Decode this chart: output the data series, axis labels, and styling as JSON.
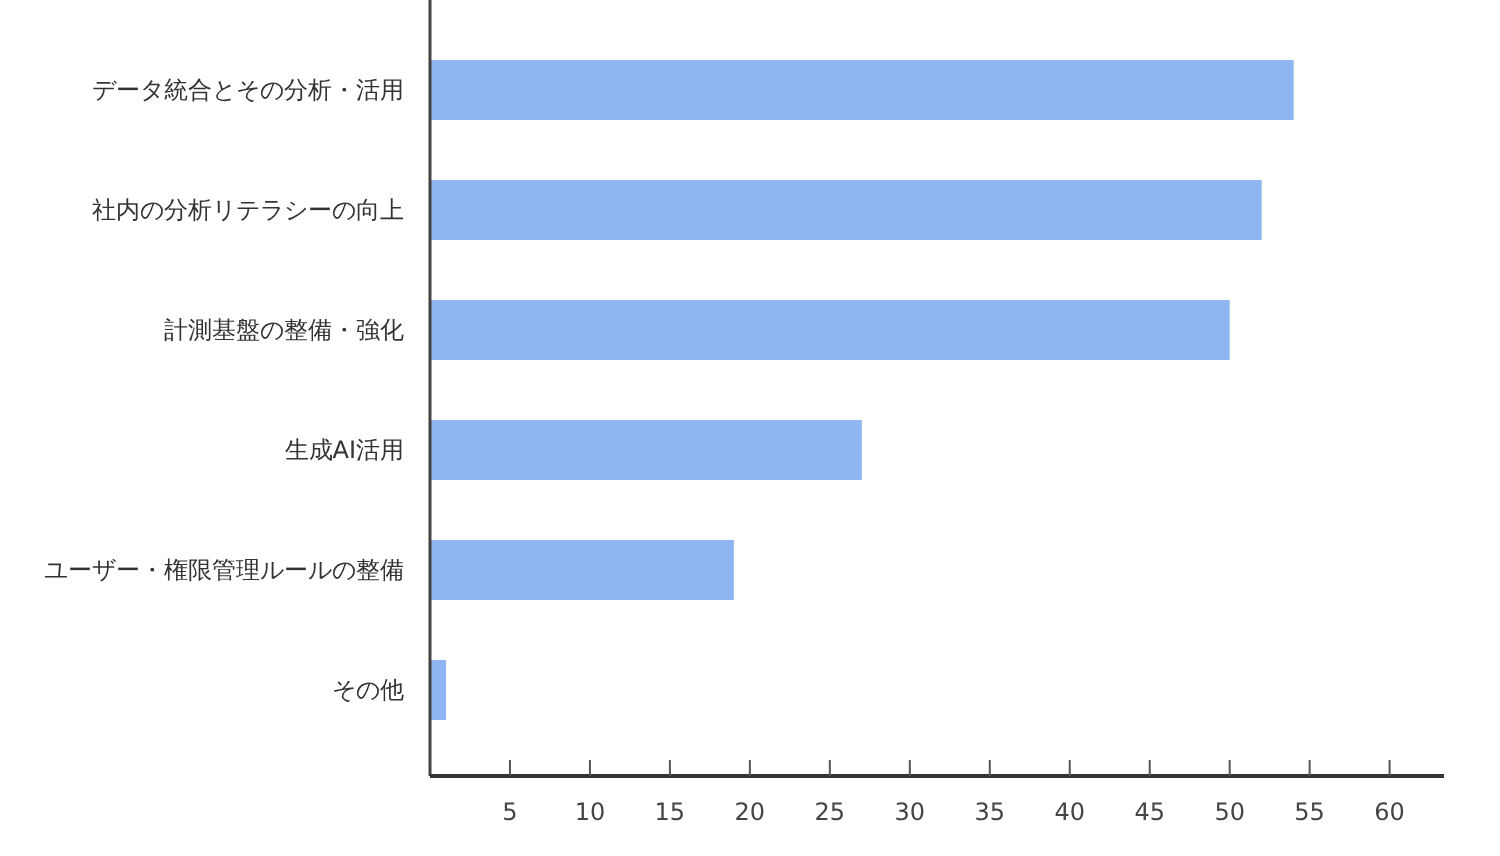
{
  "chart_data": {
    "type": "bar",
    "orientation": "horizontal",
    "categories": [
      "データ統合とその分析・活用",
      "社内の分析リテラシーの向上",
      "計測基盤の整備・強化",
      "生成AI活用",
      "ユーザー・権限管理ルールの整備",
      "その他"
    ],
    "values": [
      54,
      52,
      50,
      27,
      19,
      1
    ],
    "color": "#8fb5f2",
    "xlim": [
      0,
      63.4
    ],
    "xticks": [
      5,
      10,
      15,
      20,
      25,
      30,
      35,
      40,
      45,
      50,
      55,
      60
    ],
    "grid": false
  }
}
